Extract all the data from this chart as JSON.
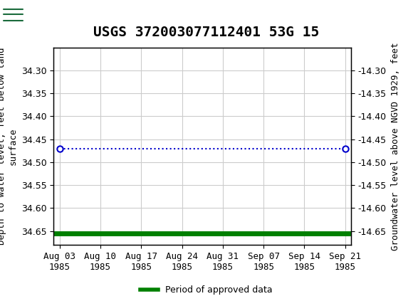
{
  "title": "USGS 372003077112401 53G 15",
  "ylabel_left": "Depth to water level, feet below land\nsurface",
  "ylabel_right": "Groundwater level above NGVD 1929, feet",
  "ylim_left": [
    34.68,
    34.25
  ],
  "ylim_right": [
    -14.68,
    -14.25
  ],
  "yticks_left": [
    34.3,
    34.35,
    34.4,
    34.45,
    34.5,
    34.55,
    34.6,
    34.65
  ],
  "yticks_right": [
    -14.3,
    -14.35,
    -14.4,
    -14.45,
    -14.5,
    -14.55,
    -14.6,
    -14.65
  ],
  "xtick_labels": [
    "Aug 03\n1985",
    "Aug 10\n1985",
    "Aug 17\n1985",
    "Aug 24\n1985",
    "Aug 31\n1985",
    "Sep 07\n1985",
    "Sep 14\n1985",
    "Sep 21\n1985"
  ],
  "xtick_positions": [
    0,
    7,
    14,
    21,
    28,
    35,
    42,
    49
  ],
  "xlim": [
    -1,
    50
  ],
  "dotted_line_x": [
    0,
    49
  ],
  "dotted_line_y": [
    34.47,
    34.47
  ],
  "dot_points_x": [
    0,
    49
  ],
  "dot_points_y": [
    34.47,
    34.47
  ],
  "green_line_y": 34.655,
  "header_color": "#1a6b3c",
  "dotted_line_color": "#0000cc",
  "dot_color": "#0000cc",
  "green_line_color": "#008000",
  "background_color": "#ffffff",
  "plot_bg_color": "#ffffff",
  "grid_color": "#cccccc",
  "legend_label": "Period of approved data",
  "title_fontsize": 14,
  "tick_fontsize": 9,
  "ylabel_fontsize": 9
}
